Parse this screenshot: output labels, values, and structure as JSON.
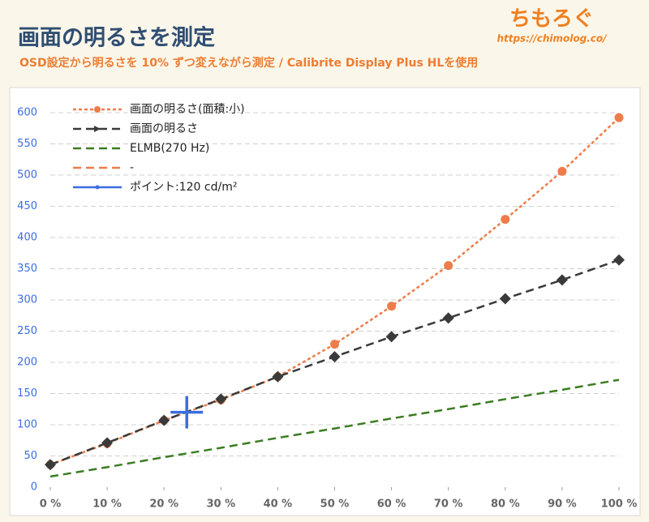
{
  "chart_data": {
    "type": "line",
    "title": "画面の明るさを測定",
    "subtitle": "OSD設定から明るさを 10% ずつ変えながら測定 / Calibrite Display Plus HLを使用",
    "brand": "ちもろぐ",
    "brand_url": "https://chimolog.co/",
    "x": [
      0,
      10,
      20,
      30,
      40,
      50,
      60,
      70,
      80,
      90,
      100
    ],
    "xlim": [
      0,
      100
    ],
    "xticks": [
      {
        "value": 0,
        "label": "0 %"
      },
      {
        "value": 10,
        "label": "10 %"
      },
      {
        "value": 20,
        "label": "20 %"
      },
      {
        "value": 30,
        "label": "30 %"
      },
      {
        "value": 40,
        "label": "40 %"
      },
      {
        "value": 50,
        "label": "50 %"
      },
      {
        "value": 60,
        "label": "60 %"
      },
      {
        "value": 70,
        "label": "70 %"
      },
      {
        "value": 80,
        "label": "80 %"
      },
      {
        "value": 90,
        "label": "90 %"
      },
      {
        "value": 100,
        "label": "100 %"
      }
    ],
    "ylim": [
      0,
      600
    ],
    "yticks": [
      0,
      50,
      100,
      150,
      200,
      250,
      300,
      350,
      400,
      450,
      500,
      550,
      600
    ],
    "grid": true,
    "legend": "top-left",
    "series": [
      {
        "name": "画面の明るさ(面積:小)",
        "color": "#ed7d4a",
        "line_style": "dotted",
        "marker": "circle",
        "values": [
          36,
          70,
          107,
          140,
          177,
          229,
          290,
          355,
          429,
          506,
          592
        ]
      },
      {
        "name": "画面の明るさ",
        "color": "#3a3a3a",
        "line_style": "dashed",
        "marker": "diamond",
        "values": [
          36,
          71,
          107,
          141,
          177,
          209,
          241,
          271,
          302,
          332,
          364
        ]
      },
      {
        "name": "ELMB(270 Hz)",
        "color": "#3a7d22",
        "line_style": "dashed",
        "marker": "none",
        "values": [
          17,
          32,
          48,
          63,
          79,
          94,
          110,
          125,
          141,
          156,
          172
        ]
      },
      {
        "name": "-",
        "color": "#ed7d4a",
        "line_style": "dashed",
        "marker": "none",
        "values": [
          null,
          null,
          null,
          null,
          null,
          null,
          null,
          null,
          null,
          null,
          null
        ]
      },
      {
        "name": "ポイント:120 cd/m²",
        "color": "#3b6de0",
        "line_style": "solid",
        "marker": "cross",
        "x": [
          24
        ],
        "values": [
          120
        ]
      }
    ]
  }
}
